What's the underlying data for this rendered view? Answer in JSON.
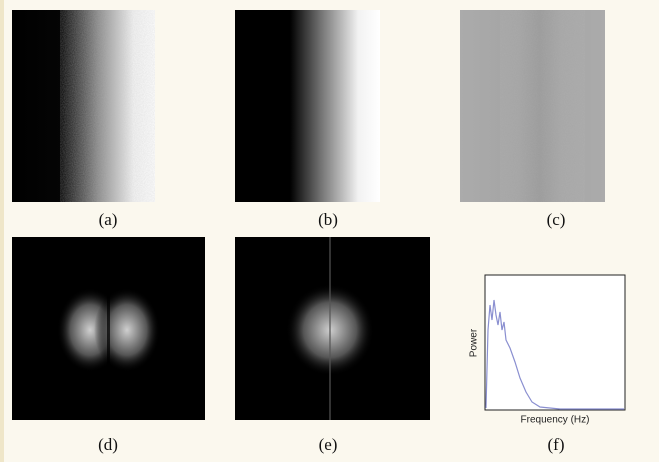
{
  "panels": {
    "a": "(a)",
    "b": "(b)",
    "c": "(c)",
    "d": "(d)",
    "e": "(e)",
    "f": "(f)"
  },
  "plot": {
    "y_label": "Power",
    "x_label": "Frequency (Hz)"
  }
}
